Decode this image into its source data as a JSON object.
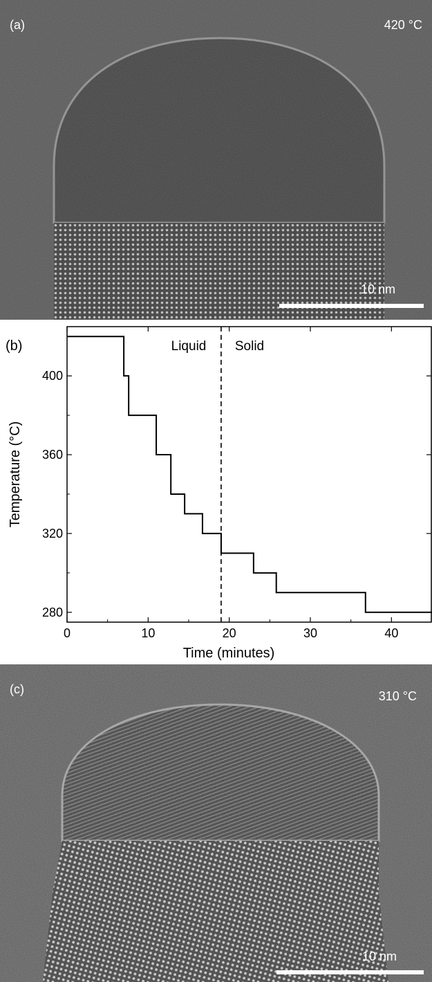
{
  "panel_a": {
    "label": "(a)",
    "temperature_label": "420 °C",
    "scale_bar_label": "10 nm"
  },
  "panel_c": {
    "label": "(c)",
    "temperature_label": "310 °C",
    "scale_bar_label": "10 nm"
  },
  "chart_data": {
    "type": "line",
    "panel_label": "(b)",
    "title": "",
    "xlabel": "Time (minutes)",
    "ylabel": "Temperature (°C)",
    "xlim": [
      0,
      45
    ],
    "ylim": [
      275,
      425
    ],
    "x_ticks": [
      0,
      10,
      20,
      30,
      40
    ],
    "y_ticks": [
      280,
      320,
      360,
      400
    ],
    "grid": false,
    "series": [
      {
        "x": [
          0,
          7.0,
          7.0,
          7.6,
          7.6,
          11.0,
          11.0,
          12.8,
          12.8,
          14.5,
          14.5,
          16.7,
          16.7,
          19.0,
          19.0,
          23.0,
          23.0,
          25.8,
          25.8,
          36.8,
          36.8,
          45
        ],
        "y": [
          420,
          420,
          400,
          400,
          380,
          380,
          360,
          360,
          340,
          340,
          330,
          330,
          320,
          320,
          310,
          310,
          300,
          300,
          290,
          290,
          280,
          280
        ]
      }
    ],
    "annotations": [
      {
        "text": "Liquid",
        "x": 15.0,
        "y": 418
      },
      {
        "text": "Solid",
        "x": 22.5,
        "y": 418
      }
    ],
    "vline": {
      "x": 19.0,
      "style": "dashed"
    }
  }
}
